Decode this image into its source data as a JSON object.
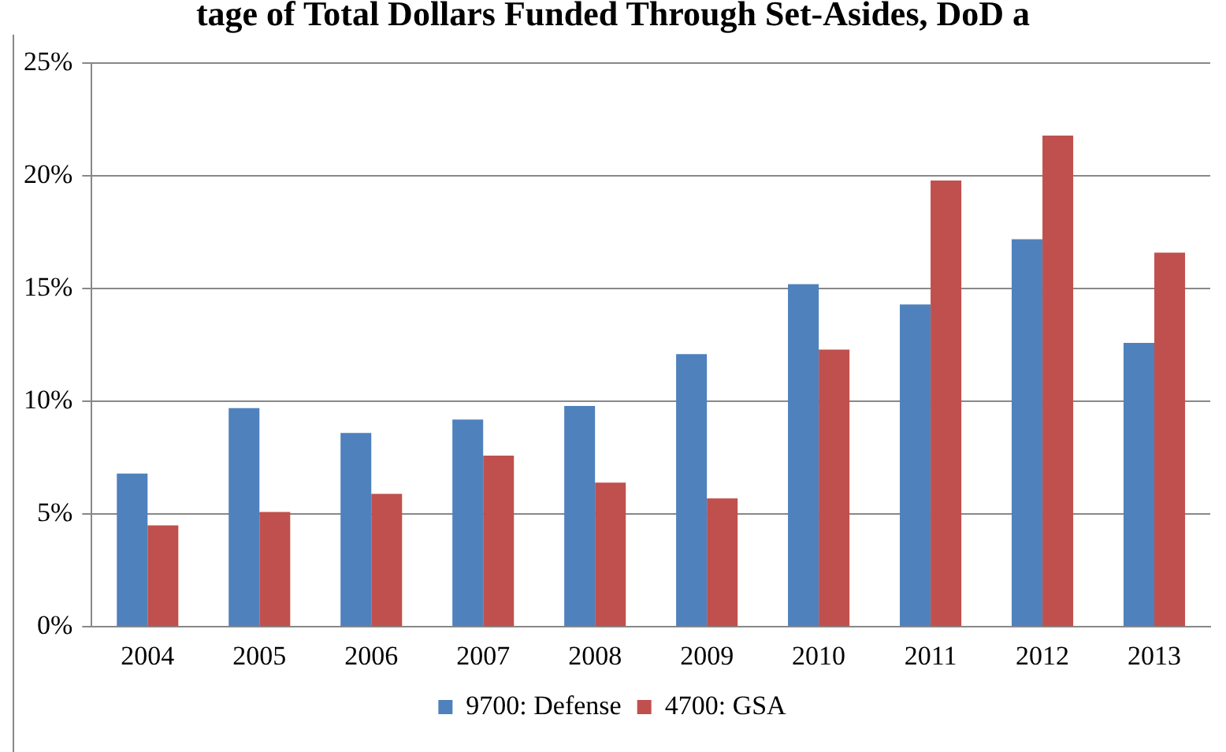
{
  "chart_data": {
    "type": "bar",
    "title": "tage of Total Dollars Funded Through Set-Asides, DoD a",
    "categories": [
      "2004",
      "2005",
      "2006",
      "2007",
      "2008",
      "2009",
      "2010",
      "2011",
      "2012",
      "2013"
    ],
    "series": [
      {
        "name": "9700: Defense",
        "color": "#4f81bd",
        "values": [
          6.8,
          9.7,
          8.6,
          9.2,
          9.8,
          12.1,
          15.2,
          14.3,
          17.2,
          12.6
        ]
      },
      {
        "name": "4700: GSA",
        "color": "#c0504d",
        "values": [
          4.5,
          5.1,
          5.9,
          7.6,
          6.4,
          5.7,
          12.3,
          19.8,
          21.8,
          16.6
        ]
      }
    ],
    "ylim": [
      0,
      25
    ],
    "yticks": [
      {
        "value": 0,
        "label": "0%"
      },
      {
        "value": 5,
        "label": "5%"
      },
      {
        "value": 10,
        "label": "10%"
      },
      {
        "value": 15,
        "label": "15%"
      },
      {
        "value": 20,
        "label": "20%"
      },
      {
        "value": 25,
        "label": "25%"
      }
    ],
    "grid": "y",
    "legend": "bottom"
  }
}
